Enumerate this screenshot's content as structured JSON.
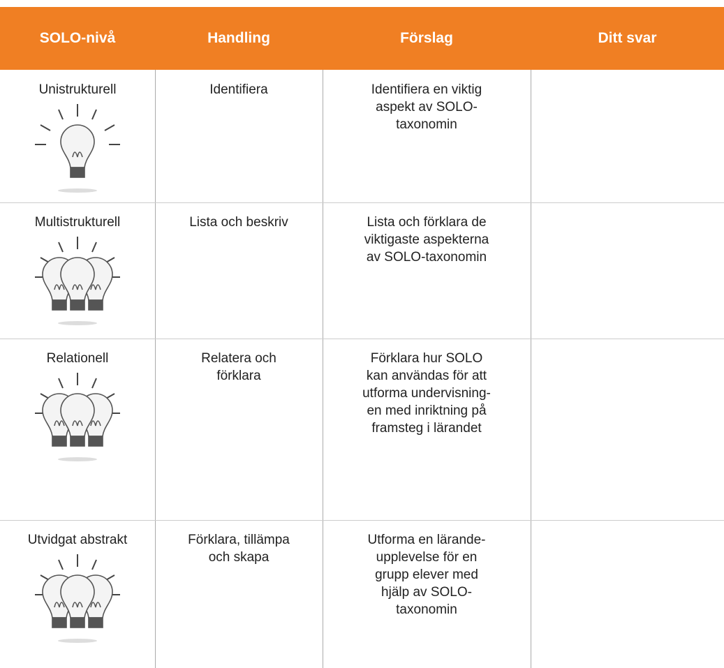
{
  "table": {
    "header": [
      "SOLO-nivå",
      "Handling",
      "Förslag",
      "Ditt svar"
    ],
    "rows": [
      [
        "Unistrukturell",
        "Identifiera",
        "Identifiera en viktig\naspekt av SOLO-\ntaxonomin"
      ],
      [
        "Multistrukturell",
        "Lista och beskriv",
        "Lista och förklara de\nviktigaste aspekterna\nav SOLO-taxonomin"
      ],
      [
        "Relationell",
        "Relatera och\nförklara",
        "Förklara hur SOLO\nkan användas för att\nutforma undervisning-\nen med inriktning på\nframsteg i lärandet"
      ],
      [
        "Utvidgat abstrakt",
        "Förklara, tillämpa\noch skapa",
        "Utforma en lärande-\nupplevelse för en\ngrupp elever med\nhjälp av SOLO-\ntaxonomin"
      ]
    ]
  }
}
